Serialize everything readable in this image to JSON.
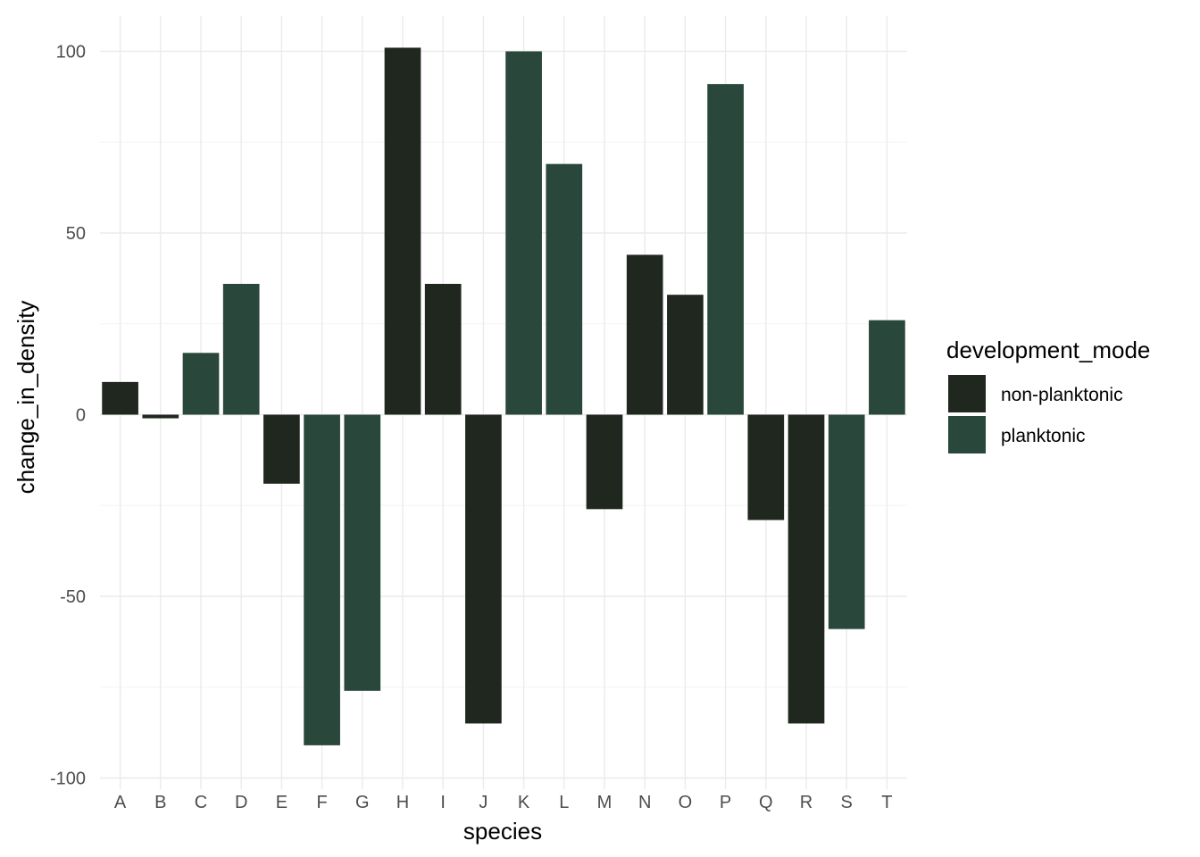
{
  "chart_data": {
    "type": "bar",
    "xlabel": "species",
    "ylabel": "change_in_density",
    "ylim": [
      -100,
      100
    ],
    "yticks": [
      -100,
      -50,
      0,
      50,
      100
    ],
    "grid": true,
    "categories": [
      "A",
      "B",
      "C",
      "D",
      "E",
      "F",
      "G",
      "H",
      "I",
      "J",
      "K",
      "L",
      "M",
      "N",
      "O",
      "P",
      "Q",
      "R",
      "S",
      "T"
    ],
    "values": [
      9,
      -1,
      17,
      36,
      -19,
      -91,
      -76,
      101,
      36,
      -85,
      100,
      69,
      -26,
      44,
      33,
      91,
      -29,
      -85,
      -59,
      26
    ],
    "groups": [
      "non-planktonic",
      "non-planktonic",
      "planktonic",
      "planktonic",
      "non-planktonic",
      "planktonic",
      "planktonic",
      "non-planktonic",
      "non-planktonic",
      "non-planktonic",
      "planktonic",
      "planktonic",
      "non-planktonic",
      "non-planktonic",
      "non-planktonic",
      "planktonic",
      "non-planktonic",
      "non-planktonic",
      "planktonic",
      "planktonic"
    ],
    "legend": {
      "title": "development_mode",
      "position": "right",
      "entries": [
        {
          "name": "non-planktonic",
          "color": "#1f271f"
        },
        {
          "name": "planktonic",
          "color": "#29473a"
        }
      ]
    }
  }
}
